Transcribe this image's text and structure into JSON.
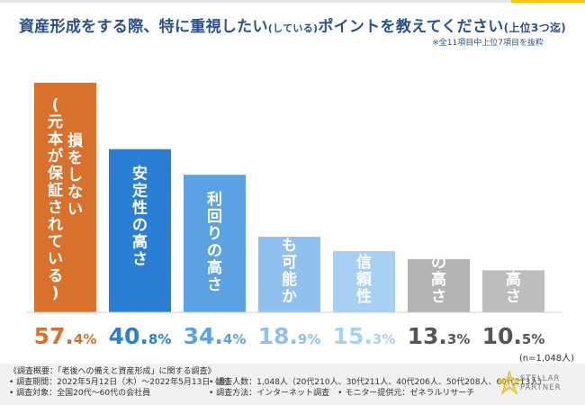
{
  "header": {
    "title_main": "資産形成をする際、特に重視したい",
    "title_paren": "(している)",
    "title_rest": "ポイントを教えてください",
    "title_suffix": "(上位3つ迄)",
    "note": "※全11項目中上位7項目を抜粋"
  },
  "chart_data": {
    "type": "bar",
    "title": "資産形成をする際、特に重視したい(している)ポイントを教えてください(上位3つ迄)",
    "categories": [
      "(元本が保証されている)損をしない",
      "安定性の高さ",
      "利回りの高さ",
      "少額からでも可能か",
      "運用元の信頼性",
      "節税効果の高さ",
      "リスクの高さ"
    ],
    "bar_labels": [
      [
        "損をしない",
        "(元本が保証されている)"
      ],
      [
        "安定性の高さ"
      ],
      [
        "利回りの高さ"
      ],
      [
        "少額からでも可能か"
      ],
      [
        "運用元の信頼性"
      ],
      [
        "節税効果の高さ"
      ],
      [
        "リスクの高さ"
      ]
    ],
    "values": [
      57.4,
      40.8,
      34.4,
      18.9,
      15.3,
      13.3,
      10.5
    ],
    "value_labels": [
      {
        "big": "57.",
        "small": "4%"
      },
      {
        "big": "40.",
        "small": "8%"
      },
      {
        "big": "34.",
        "small": "4%"
      },
      {
        "big": "18.",
        "small": "9%"
      },
      {
        "big": "15.",
        "small": "3%"
      },
      {
        "big": "13.",
        "small": "3%"
      },
      {
        "big": "10.",
        "small": "5%"
      }
    ],
    "colors": [
      "#d9702c",
      "#2a7fd4",
      "#5aa2e2",
      "#8fc0ee",
      "#a8d0f2",
      "#b3b3b3",
      "#bdbdbd"
    ],
    "label_colors": [
      "#ffffff",
      "#ffffff",
      "#ffffff",
      "#ffffff",
      "#ffffff",
      "#333333",
      "#333333"
    ],
    "value_colors": [
      "#d9702c",
      "#2a7fd4",
      "#5aa2e2",
      "#8fc0ee",
      "#a8d0f2",
      "#555555",
      "#555555"
    ],
    "ylim": [
      0,
      60
    ],
    "xlabel": "",
    "ylabel": "",
    "n_label": "(n=1,048人)"
  },
  "footer": {
    "col1": [
      "《調査概要：「老後への備えと資産形成」に関する調査》",
      "• 調査期間：2022年5月12日（木）〜2022年5月13日（金）",
      "• 調査対象：全国20代〜60代の会社員"
    ],
    "col2": [
      "• 調査人数：1,048人（20代210人、30代211人、40代206人、50代208人、60代213人）",
      "• 調査方法：インターネット調査　• モニター提供元：ゼネラルリサーチ"
    ]
  },
  "logo": {
    "line1": "STELLAR",
    "line2": "PARTNER",
    "color": "#e8c21a"
  }
}
